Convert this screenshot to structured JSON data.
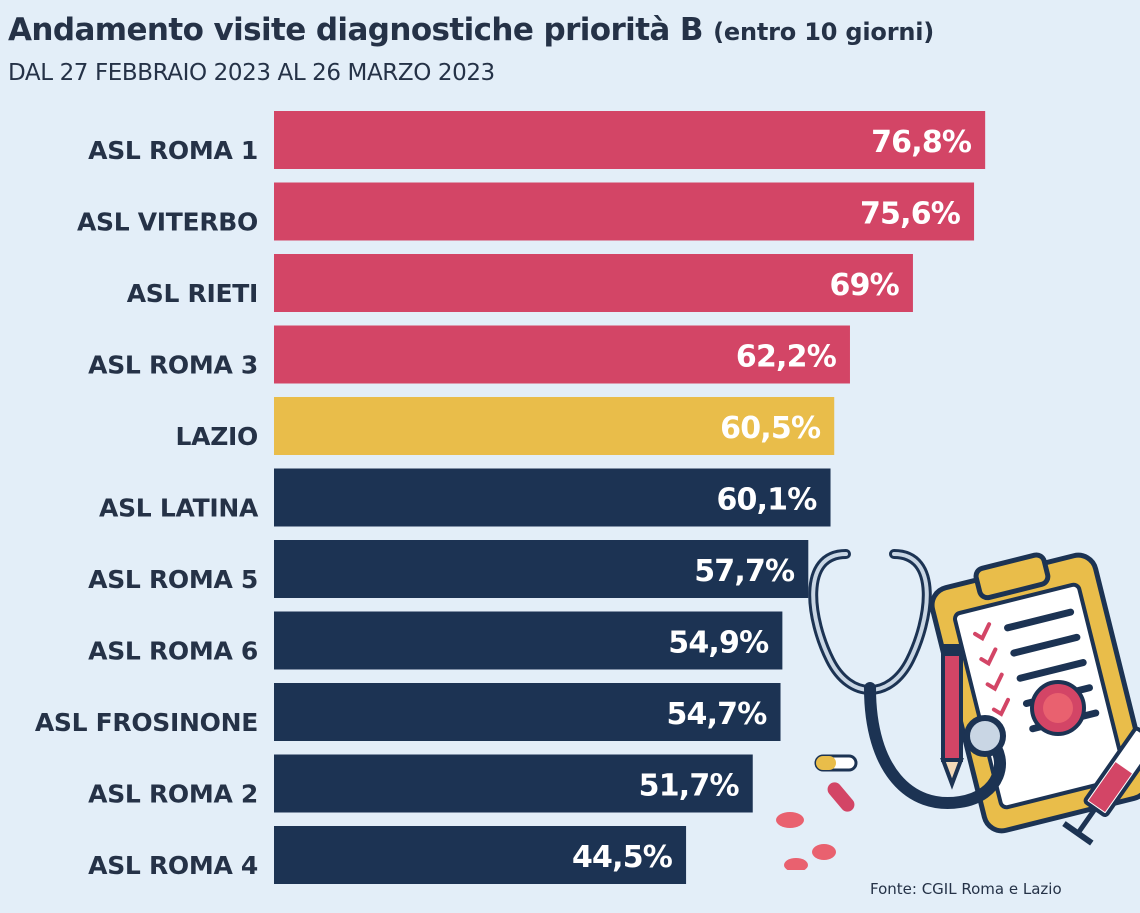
{
  "title": "Andamento visite diagnostiche priorità B",
  "title_paren": "(entro 10 giorni)",
  "subtitle": "DAL 27 FEBBRAIO 2023 AL 26 MARZO 2023",
  "source": "Fonte: CGIL Roma e Lazio",
  "colors": {
    "high": "#d34566",
    "lazio": "#e9bd4a",
    "low": "#1c3353",
    "background": "#e3eef8"
  },
  "chart_data": {
    "type": "bar",
    "orientation": "horizontal",
    "categories": [
      "ASL ROMA 1",
      "ASL VITERBO",
      "ASL RIETI",
      "ASL ROMA 3",
      "LAZIO",
      "ASL LATINA",
      "ASL ROMA 5",
      "ASL ROMA 6",
      "ASL FROSINONE",
      "ASL ROMA 2",
      "ASL ROMA 4"
    ],
    "values": [
      76.8,
      75.6,
      69,
      62.2,
      60.5,
      60.1,
      57.7,
      54.9,
      54.7,
      51.7,
      44.5
    ],
    "value_labels": [
      "76,8%",
      "75,6%",
      "69%",
      "62,2%",
      "60,5%",
      "60,1%",
      "57,7%",
      "54,9%",
      "54,7%",
      "51,7%",
      "44,5%"
    ],
    "color_groups": [
      "high",
      "high",
      "high",
      "high",
      "lazio",
      "low",
      "low",
      "low",
      "low",
      "low",
      "low"
    ],
    "title": "Andamento visite diagnostiche priorità B",
    "xlabel": "",
    "ylabel": "",
    "xlim": [
      0,
      100
    ],
    "grid": false,
    "legend": "none"
  },
  "illustration": {
    "icons": [
      "stethoscope-icon",
      "clipboard-icon",
      "pencil-icon",
      "syringe-icon",
      "pill-icon"
    ]
  }
}
